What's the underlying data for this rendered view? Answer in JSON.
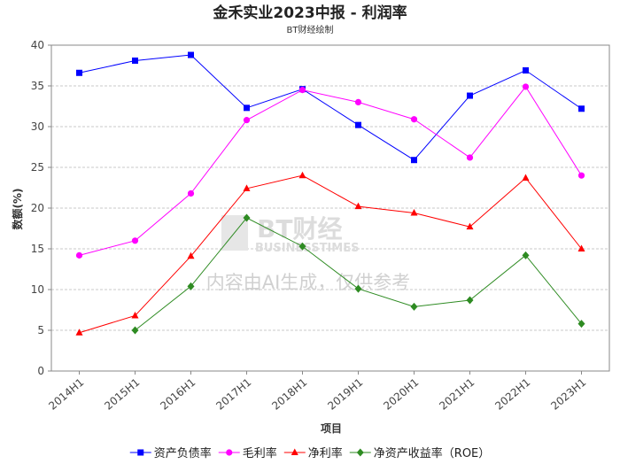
{
  "chart_data": {
    "type": "line",
    "title": "金禾实业2023中报 - 利润率",
    "subtitle": "BT财经绘制",
    "xlabel": "项目",
    "ylabel": "数额(%)",
    "ylim": [
      0,
      40
    ],
    "yticks": [
      0,
      5,
      10,
      15,
      20,
      25,
      30,
      35,
      40
    ],
    "grid": true,
    "legend_position": "bottom",
    "categories": [
      "2014H1",
      "2015H1",
      "2016H1",
      "2017H1",
      "2018H1",
      "2019H1",
      "2020H1",
      "2021H1",
      "2022H1",
      "2023H1"
    ],
    "series": [
      {
        "name": "资产负债率",
        "color": "#0000ff",
        "marker": "square",
        "values": [
          36.6,
          38.1,
          38.8,
          32.3,
          34.6,
          30.2,
          25.9,
          33.8,
          36.9,
          32.2
        ]
      },
      {
        "name": "毛利率",
        "color": "#ff00ff",
        "marker": "circle",
        "values": [
          14.2,
          16.0,
          21.8,
          30.8,
          34.5,
          33.0,
          30.9,
          26.2,
          34.9,
          24.0
        ]
      },
      {
        "name": "净利率",
        "color": "#ff0000",
        "marker": "triangle",
        "values": [
          4.7,
          6.8,
          14.1,
          22.4,
          24.0,
          20.2,
          19.4,
          17.7,
          23.7,
          15.0
        ]
      },
      {
        "name": "净资产收益率（ROE）",
        "color": "#2e8b22",
        "marker": "diamond",
        "values": [
          null,
          5.0,
          10.4,
          18.8,
          15.3,
          10.1,
          7.9,
          8.7,
          14.2,
          5.8
        ]
      }
    ]
  },
  "watermark": {
    "brand": "BT财经",
    "brand_en": "BUSINESSTIMES",
    "note": "内容由AI生成，仅供参考"
  }
}
